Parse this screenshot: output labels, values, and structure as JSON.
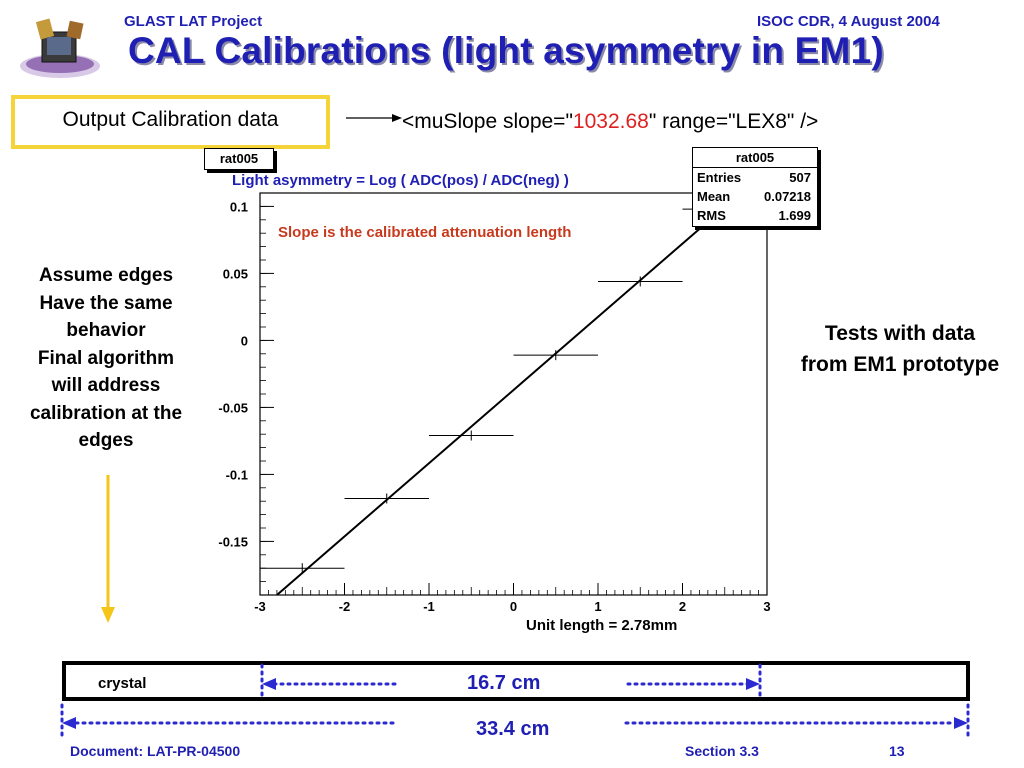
{
  "header": {
    "project": "GLAST LAT Project",
    "review": "ISOC CDR, 4 August 2004"
  },
  "title": "CAL Calibrations (light asymmetry in EM1)",
  "output_box": {
    "label": "Output Calibration data"
  },
  "muslope": {
    "prefix": "<muSlope slope=\"",
    "value": "1032.68",
    "suffix": "\" range=\"LEX8\" />"
  },
  "histogram": {
    "name": "rat005",
    "formula": "Light asymmetry  = Log (  ADC(pos) / ADC(neg) )",
    "stats_title": "rat005",
    "stats": [
      {
        "label": "Entries",
        "value": "507"
      },
      {
        "label": "Mean",
        "value": "0.07218"
      },
      {
        "label": "RMS",
        "value": "1.699"
      }
    ]
  },
  "slope_note": "Slope is the calibrated attenuation length",
  "left_note": [
    "Assume edges",
    "Have the same",
    "behavior",
    "Final algorithm",
    "will address",
    "calibration at the",
    "edges"
  ],
  "right_note": [
    "Tests with data",
    "from EM1 prototype"
  ],
  "unit_length": "Unit length = 2.78mm",
  "crystal": {
    "label": "crystal",
    "inner_length": "16.7 cm",
    "full_length": "33.4 cm"
  },
  "footer": {
    "document": "Document:   LAT-PR-04500",
    "section": "Section 3.3",
    "page": "13"
  },
  "colors": {
    "title_blue": "#1f1fb3",
    "highlight_box": "#f5d43a",
    "value_red": "#e02020",
    "note_orange": "#c83a1e",
    "arrow_yellow": "#f5c518"
  },
  "chart_data": {
    "type": "scatter",
    "xlim": [
      -3,
      3
    ],
    "ylim": [
      -0.19,
      0.11
    ],
    "x_ticks": [
      -3,
      -2,
      -1,
      0,
      1,
      2,
      3
    ],
    "x_tick_labels": [
      "-3",
      "-2",
      "-1",
      "0",
      "1",
      "2",
      "3"
    ],
    "y_ticks": [
      -0.15,
      -0.1,
      -0.05,
      0,
      0.05,
      0.1
    ],
    "y_tick_labels": [
      "-0.15",
      "-0.1",
      "-0.05",
      "0",
      "0.05",
      "0.1"
    ],
    "points": [
      {
        "x": -2.5,
        "y": -0.17,
        "xerr": 0.5
      },
      {
        "x": -1.5,
        "y": -0.118,
        "xerr": 0.5
      },
      {
        "x": -0.5,
        "y": -0.071,
        "xerr": 0.5
      },
      {
        "x": 0.5,
        "y": -0.011,
        "xerr": 0.5
      },
      {
        "x": 1.5,
        "y": 0.044,
        "xerr": 0.5
      },
      {
        "x": 2.5,
        "y": 0.098,
        "xerr": 0.5
      }
    ],
    "fit_line": {
      "x": [
        -2.8,
        2.6
      ],
      "y": [
        -0.19,
        0.105
      ]
    },
    "grid": false
  }
}
